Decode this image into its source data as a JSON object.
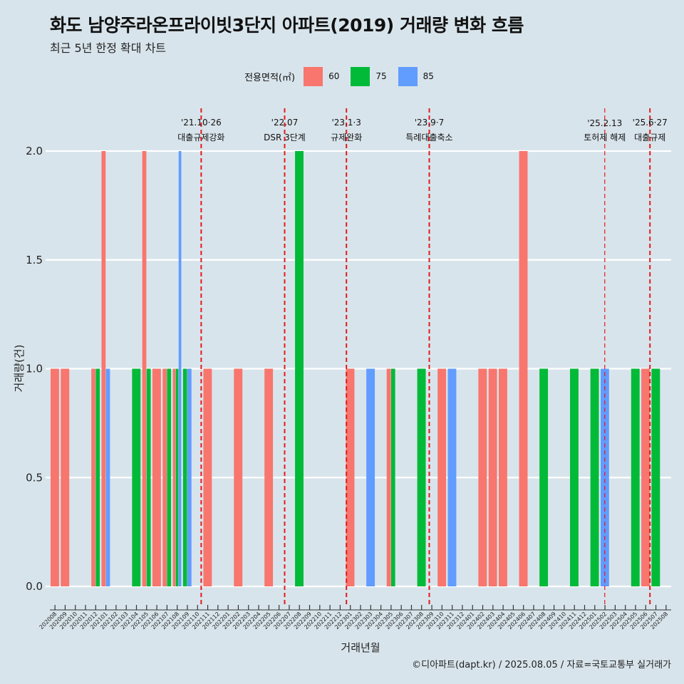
{
  "title": "화도 남양주라온프라이빗3단지 아파트(2019) 거래량 변화 흐름",
  "subtitle": "최근 5년 한정 확대 차트",
  "caption": "©디아파트(dapt.kr) / 2025.08.05 / 자료=국토교통부 실거래가",
  "legend": {
    "title": "전용면적(㎡)",
    "items": [
      {
        "label": "60",
        "color": "#F8766D"
      },
      {
        "label": "75",
        "color": "#00BA38"
      },
      {
        "label": "85",
        "color": "#619CFF"
      }
    ]
  },
  "chart_data": {
    "type": "bar",
    "xlabel": "거래년월",
    "ylabel": "거래량(건)",
    "ylim": [
      0,
      2
    ],
    "yticks": [
      "0.0",
      "0.5",
      "1.0",
      "1.5",
      "2.0"
    ],
    "grid": true,
    "legend_position": "top",
    "categories": [
      "202008",
      "202009",
      "202010",
      "202011",
      "202012",
      "202101",
      "202102",
      "202103",
      "202104",
      "202105",
      "202106",
      "202107",
      "202108",
      "202109",
      "202110",
      "202111",
      "202112",
      "202201",
      "202202",
      "202203",
      "202204",
      "202205",
      "202206",
      "202207",
      "202208",
      "202209",
      "202210",
      "202211",
      "202212",
      "202301",
      "202302",
      "202303",
      "202304",
      "202305",
      "202306",
      "202307",
      "202308",
      "202309",
      "202310",
      "202311",
      "202312",
      "202401",
      "202402",
      "202403",
      "202404",
      "202405",
      "202406",
      "202407",
      "202408",
      "202409",
      "202410",
      "202411",
      "202412",
      "202501",
      "202502",
      "202503",
      "202504",
      "202505",
      "202506",
      "202507",
      "202508"
    ],
    "series": [
      {
        "name": "60",
        "color": "#F8766D",
        "values": [
          1,
          1,
          0,
          0,
          1,
          2,
          0,
          0,
          0,
          2,
          1,
          1,
          1,
          0,
          0,
          1,
          0,
          0,
          1,
          0,
          0,
          1,
          0,
          0,
          0,
          0,
          0,
          0,
          0,
          1,
          0,
          0,
          0,
          1,
          0,
          0,
          0,
          0,
          1,
          0,
          0,
          0,
          1,
          1,
          1,
          0,
          2,
          0,
          0,
          0,
          0,
          0,
          0,
          0,
          0,
          0,
          0,
          0,
          1,
          0,
          0
        ]
      },
      {
        "name": "75",
        "color": "#00BA38",
        "values": [
          0,
          0,
          0,
          0,
          1,
          0,
          0,
          0,
          1,
          1,
          0,
          1,
          1,
          1,
          0,
          0,
          0,
          0,
          0,
          0,
          0,
          0,
          0,
          0,
          2,
          0,
          0,
          0,
          0,
          0,
          0,
          0,
          0,
          1,
          0,
          0,
          1,
          0,
          0,
          0,
          0,
          0,
          0,
          0,
          0,
          0,
          0,
          0,
          1,
          0,
          0,
          1,
          0,
          1,
          0,
          0,
          0,
          1,
          0,
          1,
          0
        ]
      },
      {
        "name": "85",
        "color": "#619CFF",
        "values": [
          0,
          0,
          0,
          0,
          0,
          1,
          0,
          0,
          0,
          0,
          0,
          0,
          2,
          1,
          0,
          0,
          0,
          0,
          0,
          0,
          0,
          0,
          0,
          0,
          0,
          0,
          0,
          0,
          0,
          0,
          0,
          1,
          0,
          0,
          0,
          0,
          0,
          0,
          0,
          1,
          0,
          0,
          0,
          0,
          0,
          0,
          0,
          0,
          0,
          0,
          0,
          0,
          0,
          0,
          1,
          0,
          0,
          0,
          0,
          0,
          0
        ]
      }
    ],
    "events": [
      {
        "date": "'21.10·26",
        "label": "대출규제강화",
        "at": "2021-10-26"
      },
      {
        "date": "'22.07",
        "label": "DSR 3단계",
        "at": "2022-07-01"
      },
      {
        "date": "'23.1·3",
        "label": "규제완화",
        "at": "2023-01-03"
      },
      {
        "date": "'23.9·7",
        "label": "특례대출축소",
        "at": "2023-09-07"
      },
      {
        "date": "'25.2.13",
        "label": "토허제 해제",
        "at": "2025-02-13"
      },
      {
        "date": "'25.6·27",
        "label": "대출규제",
        "at": "2025-06-27"
      }
    ],
    "event_line_color": "#E41A1C"
  }
}
